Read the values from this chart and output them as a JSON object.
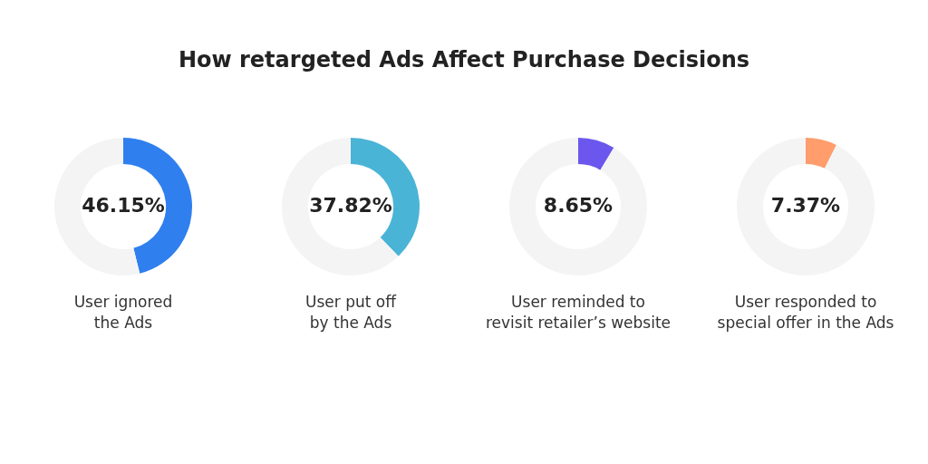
{
  "chart_data": [
    {
      "type": "donut",
      "title": "How retargeted Ads Affect Purchase Decisions",
      "xlabel": "User ignored the Ads",
      "categories": [
        null,
        null
      ],
      "values": [
        46.15,
        53.85
      ],
      "colors": [
        "#2f7fef",
        "#f4f4f4"
      ],
      "value_labels": [
        "46.15%",
        null
      ]
    },
    {
      "type": "donut",
      "xlabel": "User put off by the Ads",
      "categories": [
        null,
        null
      ],
      "values": [
        37.82,
        62.18
      ],
      "colors": [
        "#4ab4d6",
        "#f4f4f4"
      ],
      "value_labels": [
        "37.82%",
        null
      ]
    },
    {
      "type": "donut",
      "xlabel": "User reminded to revisit retailer’s website",
      "categories": [
        null,
        null
      ],
      "values": [
        8.65,
        91.35
      ],
      "colors": [
        "#6b57ee",
        "#f4f4f4"
      ],
      "value_labels": [
        "8.65%",
        null
      ]
    },
    {
      "type": "donut",
      "xlabel": "User responded to special offer in the Ads",
      "categories": [
        null,
        null
      ],
      "values": [
        7.37,
        92.63
      ],
      "colors": [
        "#ff9d6c",
        "#f4f4f4"
      ],
      "value_labels": [
        "7.37%",
        null
      ]
    }
  ]
}
